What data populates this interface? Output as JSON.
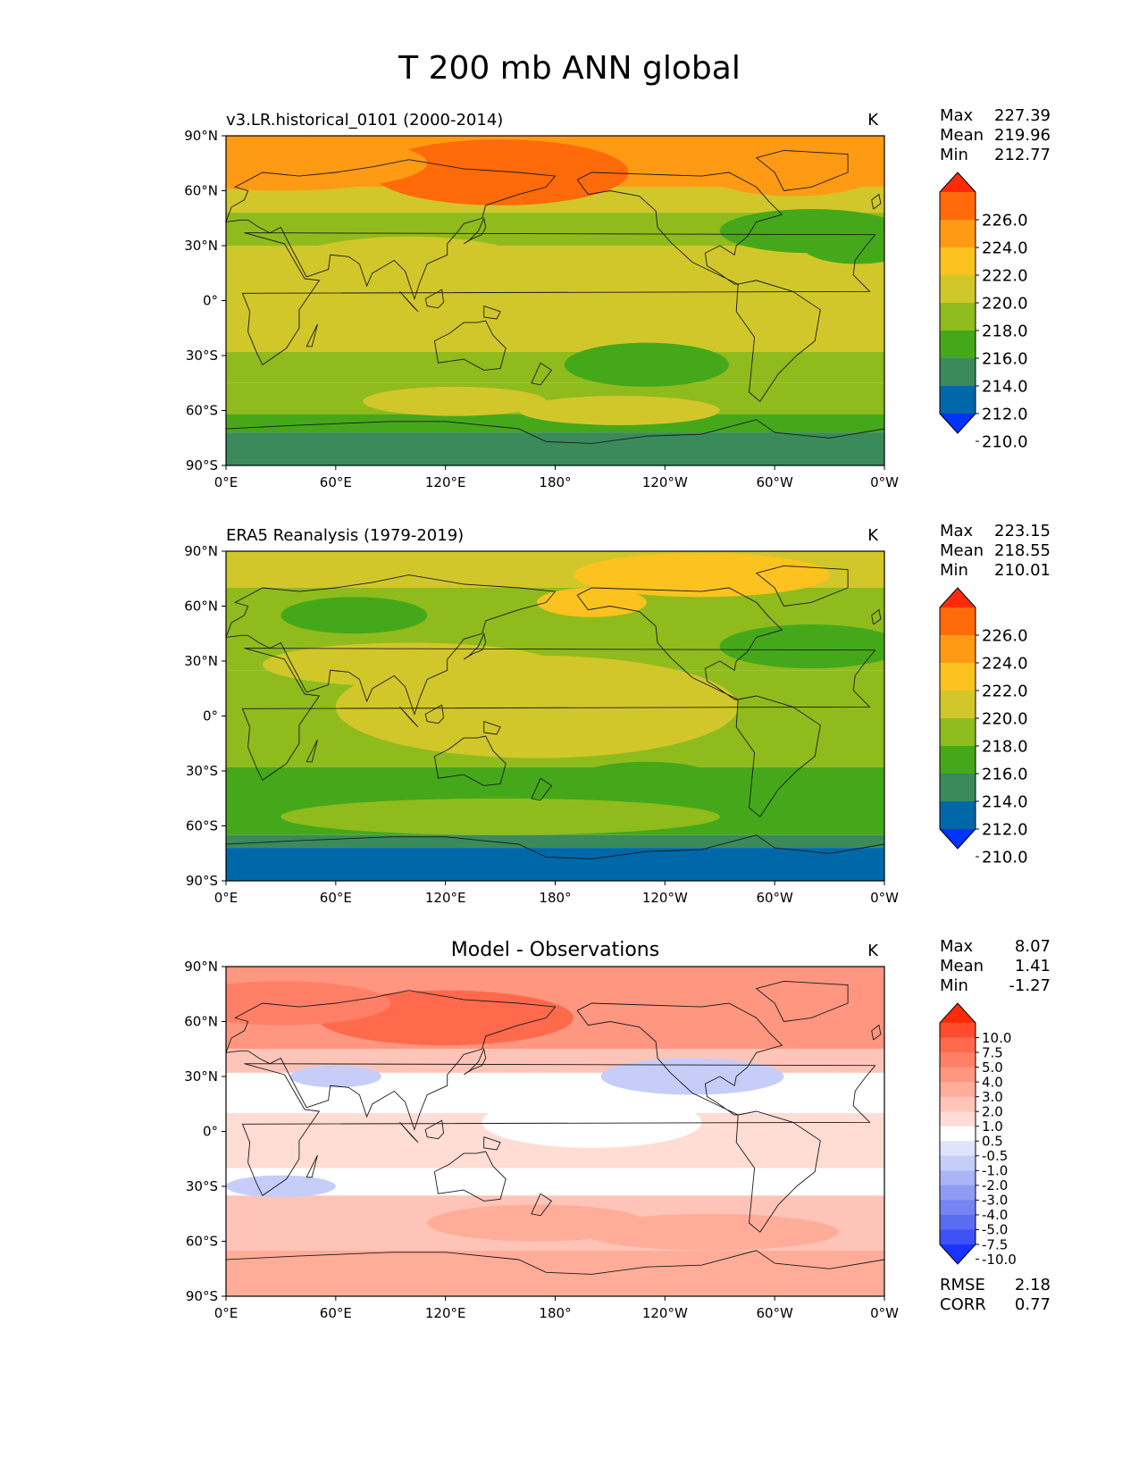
{
  "title": "T 200 mb ANN global",
  "lon_ticks": [
    "0°E",
    "60°E",
    "120°E",
    "180°",
    "120°W",
    "60°W",
    "0°W"
  ],
  "lat_ticks": [
    "90°N",
    "60°N",
    "30°N",
    "0°",
    "30°S",
    "60°S",
    "90°S"
  ],
  "stat_labels": {
    "max": "Max",
    "mean": "Mean",
    "min": "Min"
  },
  "panels": [
    {
      "id": "test",
      "left_title": "v3.LR.historical_0101 (2000-2014)",
      "center_title": "",
      "units": "K",
      "stats": {
        "max": "227.39",
        "mean": "219.96",
        "min": "212.77"
      },
      "colorbar": {
        "labels": [
          "226.0",
          "224.0",
          "222.0",
          "220.0",
          "218.0",
          "216.0",
          "214.0",
          "212.0",
          "210.0"
        ],
        "colors": [
          "#ff2a0a",
          "#ff6a0a",
          "#ff9a14",
          "#fcc21f",
          "#d1c72a",
          "#8fbb1d",
          "#45a81a",
          "#3a8a5c",
          "#0068a8",
          "#0033ff"
        ]
      }
    },
    {
      "id": "reference",
      "left_title": "ERA5 Reanalysis (1979-2019)",
      "center_title": "",
      "units": "K",
      "stats": {
        "max": "223.15",
        "mean": "218.55",
        "min": "210.01"
      },
      "colorbar": {
        "labels": [
          "226.0",
          "224.0",
          "222.0",
          "220.0",
          "218.0",
          "216.0",
          "214.0",
          "212.0",
          "210.0"
        ],
        "colors": [
          "#ff2a0a",
          "#ff6a0a",
          "#ff9a14",
          "#fcc21f",
          "#d1c72a",
          "#8fbb1d",
          "#45a81a",
          "#3a8a5c",
          "#0068a8",
          "#0033ff"
        ]
      }
    },
    {
      "id": "difference",
      "left_title": "",
      "center_title": "Model - Observations",
      "units": "K",
      "stats": {
        "max": "8.07",
        "mean": "1.41",
        "min": "-1.27"
      },
      "colorbar": {
        "labels": [
          "10.0",
          "7.5",
          "5.0",
          "4.0",
          "3.0",
          "2.0",
          "1.0",
          "0.5",
          "-0.5",
          "-1.0",
          "-2.0",
          "-3.0",
          "-4.0",
          "-5.0",
          "-7.5",
          "-10.0"
        ],
        "colors": [
          "#ff2a0a",
          "#ff4c2e",
          "#ff6a4c",
          "#ff8066",
          "#ff9680",
          "#ffad99",
          "#ffc4b8",
          "#ffdcd4",
          "#ffffff",
          "#dfe3fc",
          "#c6cdf9",
          "#aab4f6",
          "#8f9cf3",
          "#7484f2",
          "#5a6cf0",
          "#3e52f5",
          "#1a33ff"
        ]
      },
      "rmse_label": "RMSE",
      "rmse": "2.18",
      "corr_label": "CORR",
      "corr": "0.77"
    }
  ]
}
